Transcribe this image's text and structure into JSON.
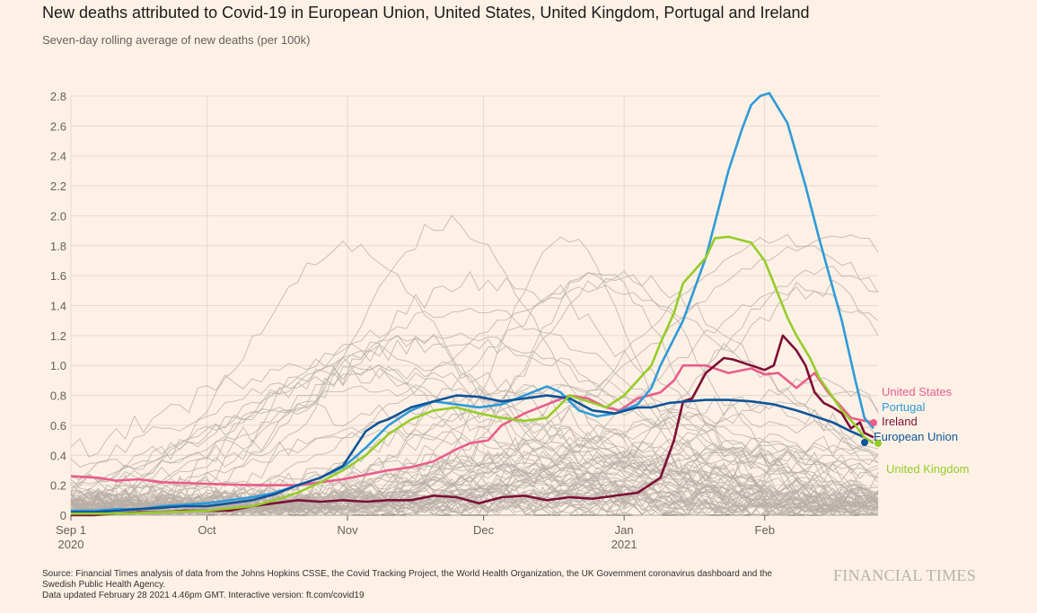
{
  "header": {
    "title": "New deaths attributed to Covid-19 in European Union, United States, United Kingdom, Portugal and Ireland",
    "subtitle": "Seven-day rolling average of new deaths (per 100k)"
  },
  "footer": {
    "source_line1": "Source: Financial Times analysis of data from the Johns Hopkins CSSE, the Covid Tracking Project, the World Health Organization, the UK Government coronavirus dashboard and the",
    "source_line2": "Swedish Public Health Agency.",
    "updated": "Data updated February 28 2021 4.46pm GMT. Interactive version: ft.com/covid19",
    "brand": "FINANCIAL TIMES"
  },
  "chart_data": {
    "type": "line",
    "title": "New deaths attributed to Covid-19 in European Union, United States, United Kingdom, Portugal and Ireland",
    "subtitle": "Seven-day rolling average of new deaths (per 100k)",
    "xlabel": "",
    "ylabel": "",
    "x_unit": "days since 2020-09-01",
    "xlim": [
      0,
      178
    ],
    "ylim": [
      0,
      2.8
    ],
    "y_ticks": [
      0,
      0.2,
      0.4,
      0.6,
      0.8,
      1.0,
      1.2,
      1.4,
      1.6,
      1.8,
      2.0,
      2.2,
      2.4,
      2.6,
      2.8
    ],
    "y_tick_labels": [
      "0",
      "0.2",
      "0.4",
      "0.6",
      "0.8",
      "1.0",
      "1.2",
      "1.4",
      "1.6",
      "1.8",
      "2.0",
      "2.2",
      "2.4",
      "2.6",
      "2.8"
    ],
    "x_ticks": [
      {
        "day": 0,
        "label": "Sep 1",
        "year": "2020"
      },
      {
        "day": 30,
        "label": "Oct",
        "year": ""
      },
      {
        "day": 61,
        "label": "Nov",
        "year": ""
      },
      {
        "day": 91,
        "label": "Dec",
        "year": ""
      },
      {
        "day": 122,
        "label": "Jan",
        "year": "2021"
      },
      {
        "day": 153,
        "label": "Feb",
        "year": ""
      }
    ],
    "grid": true,
    "series": [
      {
        "name": "United States",
        "color": "#e95d8c",
        "x": [
          0,
          6,
          10,
          15,
          20,
          30,
          40,
          50,
          55,
          60,
          65,
          70,
          75,
          80,
          85,
          88,
          92,
          95,
          100,
          105,
          110,
          114,
          118,
          121,
          125,
          130,
          133,
          135,
          140,
          145,
          150,
          153,
          156,
          160,
          164,
          167,
          170,
          172,
          175,
          177
        ],
        "y": [
          0.26,
          0.25,
          0.23,
          0.24,
          0.22,
          0.21,
          0.2,
          0.2,
          0.22,
          0.24,
          0.27,
          0.3,
          0.32,
          0.36,
          0.44,
          0.48,
          0.5,
          0.6,
          0.68,
          0.74,
          0.8,
          0.78,
          0.72,
          0.7,
          0.78,
          0.82,
          0.9,
          1.0,
          1.0,
          0.95,
          0.98,
          0.94,
          0.95,
          0.85,
          0.95,
          0.82,
          0.72,
          0.65,
          0.63,
          0.62
        ]
      },
      {
        "name": "Portugal",
        "color": "#2f9ad8",
        "x": [
          0,
          5,
          10,
          15,
          20,
          25,
          30,
          35,
          40,
          45,
          50,
          55,
          60,
          62,
          65,
          70,
          75,
          80,
          85,
          90,
          95,
          100,
          105,
          108,
          112,
          116,
          120,
          125,
          128,
          130,
          135,
          140,
          145,
          148,
          150,
          152,
          154,
          158,
          162,
          165,
          170,
          173,
          175,
          177
        ],
        "y": [
          0.03,
          0.03,
          0.04,
          0.04,
          0.06,
          0.07,
          0.08,
          0.1,
          0.12,
          0.15,
          0.2,
          0.25,
          0.32,
          0.37,
          0.45,
          0.6,
          0.7,
          0.76,
          0.74,
          0.72,
          0.74,
          0.8,
          0.86,
          0.82,
          0.7,
          0.66,
          0.68,
          0.74,
          0.85,
          1.0,
          1.3,
          1.72,
          2.3,
          2.58,
          2.74,
          2.8,
          2.82,
          2.62,
          2.2,
          1.85,
          1.3,
          0.9,
          0.65,
          0.58
        ]
      },
      {
        "name": "Ireland",
        "color": "#7d0f36",
        "x": [
          0,
          5,
          10,
          15,
          20,
          25,
          30,
          35,
          40,
          45,
          50,
          55,
          60,
          65,
          70,
          75,
          80,
          85,
          90,
          95,
          100,
          105,
          110,
          115,
          120,
          125,
          130,
          133,
          135,
          137,
          140,
          144,
          146,
          150,
          153,
          155,
          157,
          160,
          162,
          164,
          166,
          168,
          170,
          172,
          174,
          175,
          177
        ],
        "y": [
          0,
          0,
          0.01,
          0.02,
          0.02,
          0.03,
          0.03,
          0.03,
          0.06,
          0.08,
          0.1,
          0.09,
          0.1,
          0.09,
          0.1,
          0.1,
          0.13,
          0.12,
          0.08,
          0.12,
          0.13,
          0.1,
          0.12,
          0.11,
          0.13,
          0.15,
          0.25,
          0.5,
          0.76,
          0.78,
          0.95,
          1.05,
          1.04,
          1.0,
          0.97,
          1.0,
          1.2,
          1.1,
          1.0,
          0.82,
          0.75,
          0.72,
          0.68,
          0.58,
          0.62,
          0.55,
          0.52
        ]
      },
      {
        "name": "European Union",
        "color": "#0f5499",
        "x": [
          0,
          5,
          10,
          15,
          20,
          25,
          30,
          35,
          40,
          45,
          50,
          55,
          60,
          62,
          65,
          68,
          70,
          75,
          80,
          85,
          90,
          95,
          100,
          105,
          110,
          115,
          120,
          125,
          128,
          132,
          136,
          140,
          145,
          150,
          155,
          160,
          164,
          168,
          172,
          175,
          177
        ],
        "y": [
          0.02,
          0.02,
          0.03,
          0.04,
          0.05,
          0.06,
          0.06,
          0.08,
          0.1,
          0.14,
          0.2,
          0.25,
          0.33,
          0.42,
          0.56,
          0.62,
          0.64,
          0.72,
          0.76,
          0.8,
          0.79,
          0.76,
          0.78,
          0.8,
          0.78,
          0.7,
          0.68,
          0.72,
          0.72,
          0.75,
          0.76,
          0.77,
          0.77,
          0.76,
          0.74,
          0.7,
          0.66,
          0.62,
          0.56,
          0.52,
          0.48
        ]
      },
      {
        "name": "United Kingdom",
        "color": "#96cc28",
        "x": [
          0,
          10,
          20,
          30,
          40,
          45,
          50,
          55,
          60,
          62,
          65,
          70,
          75,
          80,
          85,
          90,
          95,
          100,
          105,
          110,
          114,
          118,
          122,
          125,
          128,
          130,
          133,
          135,
          140,
          142,
          145,
          150,
          153,
          155,
          158,
          160,
          163,
          165,
          170,
          173,
          175,
          177
        ],
        "y": [
          0.01,
          0.01,
          0.02,
          0.03,
          0.06,
          0.1,
          0.15,
          0.22,
          0.3,
          0.34,
          0.4,
          0.54,
          0.64,
          0.7,
          0.72,
          0.68,
          0.65,
          0.63,
          0.65,
          0.8,
          0.76,
          0.72,
          0.8,
          0.9,
          1.0,
          1.15,
          1.35,
          1.55,
          1.72,
          1.85,
          1.86,
          1.82,
          1.7,
          1.55,
          1.32,
          1.2,
          1.05,
          0.92,
          0.7,
          0.6,
          0.52,
          0.48
        ]
      }
    ],
    "annotations": [
      "United States",
      "Portugal",
      "Ireland",
      "European Union",
      "United Kingdom"
    ]
  },
  "background": {
    "description_count": 70,
    "color": "#b7ada5"
  }
}
